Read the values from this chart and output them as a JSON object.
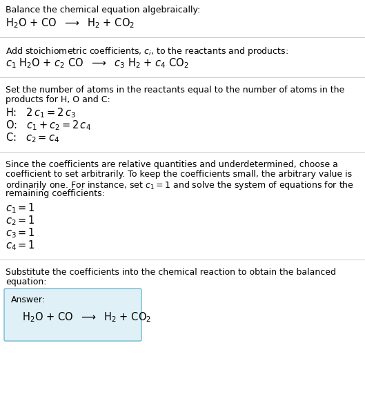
{
  "bg_color": "#ffffff",
  "text_color": "#000000",
  "line_color": "#cccccc",
  "answer_box_fill": "#dff0f7",
  "answer_box_edge": "#70b8d4",
  "font_size_body": 9.0,
  "font_size_math": 10.5,
  "sections": [
    {
      "type": "text_then_math",
      "text": "Balance the chemical equation algebraically:",
      "math": "H$_2$O + CO  $\\longrightarrow$  H$_2$ + CO$_2$"
    },
    {
      "type": "text_then_math",
      "text": "Add stoichiometric coefficients, $c_i$, to the reactants and products:",
      "math": "$c_1$ H$_2$O + $c_2$ CO  $\\longrightarrow$  $c_3$ H$_2$ + $c_4$ CO$_2$"
    },
    {
      "type": "text_then_eqs",
      "text": [
        "Set the number of atoms in the reactants equal to the number of atoms in the",
        "products for H, O and C:"
      ],
      "eqs": [
        "H:   $2\\,c_1 = 2\\,c_3$",
        "O:   $c_1 + c_2 = 2\\,c_4$",
        "C:   $c_2 = c_4$"
      ]
    },
    {
      "type": "text_then_eqs",
      "text": [
        "Since the coefficients are relative quantities and underdetermined, choose a",
        "coefficient to set arbitrarily. To keep the coefficients small, the arbitrary value is",
        "ordinarily one. For instance, set $c_1 = 1$ and solve the system of equations for the",
        "remaining coefficients:"
      ],
      "eqs": [
        "$c_1 = 1$",
        "$c_2 = 1$",
        "$c_3 = 1$",
        "$c_4 = 1$"
      ]
    },
    {
      "type": "text_then_answer",
      "text": [
        "Substitute the coefficients into the chemical reaction to obtain the balanced",
        "equation:"
      ],
      "answer_label": "Answer:",
      "answer_math": "H$_2$O + CO  $\\longrightarrow$  H$_2$ + CO$_2$"
    }
  ]
}
